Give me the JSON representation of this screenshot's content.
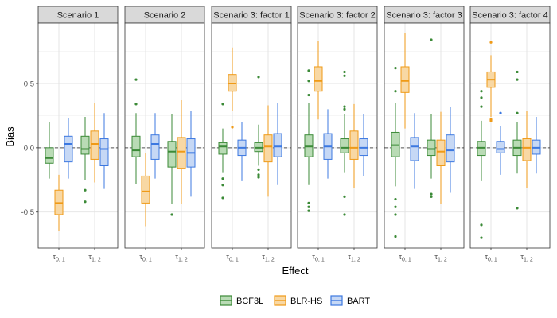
{
  "chart_data": {
    "type": "boxplot",
    "xlabel": "Effect",
    "ylabel": "Bias",
    "ylim": [
      -0.78,
      0.97
    ],
    "yticks": [
      -0.5,
      0.0,
      0.5
    ],
    "ytick_labels": [
      "-0.5",
      "0.0",
      "0.5"
    ],
    "reference_line": 0,
    "legend_position": "bottom",
    "series": [
      {
        "name": "BCF3L",
        "fill": "#b9dbb5",
        "stroke": "#3b8a37"
      },
      {
        "name": "BLR-HS",
        "fill": "#f8d8a4",
        "stroke": "#ef9a17"
      },
      {
        "name": "BART",
        "fill": "#c6d8f5",
        "stroke": "#3c78e0"
      }
    ],
    "categories": [
      {
        "sym": "τ",
        "sub": "0, 1"
      },
      {
        "sym": "τ",
        "sub": "1, 2"
      }
    ],
    "panels": [
      {
        "title": "Scenario 1",
        "groups": [
          [
            {
              "q1": -0.12,
              "med": -0.08,
              "q3": 0.0,
              "lo": -0.24,
              "hi": 0.2,
              "out": []
            },
            {
              "q1": -0.52,
              "med": -0.43,
              "q3": -0.33,
              "lo": -0.65,
              "hi": -0.21,
              "out": []
            },
            {
              "q1": -0.11,
              "med": 0.03,
              "q3": 0.09,
              "lo": -0.24,
              "hi": 0.23,
              "out": []
            }
          ],
          [
            {
              "q1": -0.05,
              "med": -0.01,
              "q3": 0.09,
              "lo": -0.25,
              "hi": 0.24,
              "out": [
                -0.33,
                -0.42
              ]
            },
            {
              "q1": -0.09,
              "med": 0.03,
              "q3": 0.13,
              "lo": -0.27,
              "hi": 0.35,
              "out": []
            },
            {
              "q1": -0.14,
              "med": -0.01,
              "q3": 0.07,
              "lo": -0.32,
              "hi": 0.27,
              "out": []
            }
          ]
        ]
      },
      {
        "title": "Scenario 2",
        "groups": [
          [
            {
              "q1": -0.07,
              "med": -0.02,
              "q3": 0.09,
              "lo": -0.28,
              "hi": 0.27,
              "out": [
                0.53,
                0.34
              ]
            },
            {
              "q1": -0.43,
              "med": -0.34,
              "q3": -0.22,
              "lo": -0.61,
              "hi": -0.04,
              "out": []
            },
            {
              "q1": -0.09,
              "med": 0.03,
              "q3": 0.1,
              "lo": -0.24,
              "hi": 0.27,
              "out": []
            }
          ],
          [
            {
              "q1": -0.15,
              "med": -0.03,
              "q3": 0.05,
              "lo": -0.44,
              "hi": 0.26,
              "out": [
                -0.52
              ]
            },
            {
              "q1": -0.16,
              "med": -0.03,
              "q3": 0.08,
              "lo": -0.44,
              "hi": 0.37,
              "out": []
            },
            {
              "q1": -0.15,
              "med": -0.04,
              "q3": 0.07,
              "lo": -0.38,
              "hi": 0.29,
              "out": []
            }
          ]
        ]
      },
      {
        "title": "Scenario 3: factor 1",
        "groups": [
          [
            {
              "q1": -0.05,
              "med": 0.01,
              "q3": 0.04,
              "lo": -0.19,
              "hi": 0.15,
              "out": [
                0.34,
                -0.24,
                -0.29,
                -0.39
              ]
            },
            {
              "q1": 0.44,
              "med": 0.5,
              "q3": 0.57,
              "lo": 0.29,
              "hi": 0.78,
              "out": [
                0.16
              ]
            },
            {
              "q1": -0.06,
              "med": 0.0,
              "q3": 0.06,
              "lo": -0.26,
              "hi": 0.2,
              "out": []
            }
          ],
          [
            {
              "q1": -0.03,
              "med": 0.0,
              "q3": 0.04,
              "lo": -0.14,
              "hi": 0.18,
              "out": [
                0.55,
                -0.17,
                -0.21,
                -0.23
              ]
            },
            {
              "q1": -0.11,
              "med": 0.01,
              "q3": 0.1,
              "lo": -0.38,
              "hi": 0.33,
              "out": []
            },
            {
              "q1": -0.07,
              "med": 0.01,
              "q3": 0.11,
              "lo": -0.29,
              "hi": 0.35,
              "out": []
            }
          ]
        ]
      },
      {
        "title": "Scenario 3: factor 2",
        "groups": [
          [
            {
              "q1": -0.07,
              "med": 0.01,
              "q3": 0.1,
              "lo": -0.29,
              "hi": 0.35,
              "out": [
                0.6,
                0.52,
                0.41,
                -0.43,
                -0.46,
                -0.49
              ]
            },
            {
              "q1": 0.44,
              "med": 0.52,
              "q3": 0.63,
              "lo": 0.22,
              "hi": 0.83,
              "out": []
            },
            {
              "q1": -0.09,
              "med": 0.01,
              "q3": 0.11,
              "lo": -0.24,
              "hi": 0.3,
              "out": []
            }
          ],
          [
            {
              "q1": -0.04,
              "med": 0.0,
              "q3": 0.07,
              "lo": -0.19,
              "hi": 0.26,
              "out": [
                0.59,
                0.56,
                0.32,
                0.3,
                -0.38,
                -0.52
              ]
            },
            {
              "q1": -0.09,
              "med": 0.0,
              "q3": 0.13,
              "lo": -0.31,
              "hi": 0.34,
              "out": []
            },
            {
              "q1": -0.06,
              "med": 0.0,
              "q3": 0.07,
              "lo": -0.22,
              "hi": 0.26,
              "out": []
            }
          ]
        ]
      },
      {
        "title": "Scenario 3: factor 3",
        "groups": [
          [
            {
              "q1": -0.07,
              "med": 0.02,
              "q3": 0.12,
              "lo": -0.3,
              "hi": 0.35,
              "out": [
                0.62,
                0.44,
                -0.4,
                -0.46,
                -0.52,
                -0.69
              ]
            },
            {
              "q1": 0.43,
              "med": 0.52,
              "q3": 0.63,
              "lo": 0.15,
              "hi": 0.89,
              "out": []
            },
            {
              "q1": -0.1,
              "med": 0.01,
              "q3": 0.08,
              "lo": -0.32,
              "hi": 0.27,
              "out": []
            }
          ],
          [
            {
              "q1": -0.06,
              "med": -0.01,
              "q3": 0.06,
              "lo": -0.24,
              "hi": 0.26,
              "out": [
                0.84,
                -0.36,
                -0.38
              ]
            },
            {
              "q1": -0.14,
              "med": -0.03,
              "q3": 0.06,
              "lo": -0.44,
              "hi": 0.28,
              "out": []
            },
            {
              "q1": -0.11,
              "med": -0.02,
              "q3": 0.1,
              "lo": -0.35,
              "hi": 0.32,
              "out": []
            }
          ]
        ]
      },
      {
        "title": "Scenario 3: factor 4",
        "groups": [
          [
            {
              "q1": -0.06,
              "med": 0.0,
              "q3": 0.05,
              "lo": -0.26,
              "hi": 0.21,
              "out": [
                0.44,
                0.39,
                0.32,
                -0.6,
                -0.7
              ]
            },
            {
              "q1": 0.47,
              "med": 0.53,
              "q3": 0.59,
              "lo": 0.24,
              "hi": 0.72,
              "out": [
                0.82,
                0.22,
                0.21
              ]
            },
            {
              "q1": -0.04,
              "med": -0.01,
              "q3": 0.05,
              "lo": -0.21,
              "hi": 0.17,
              "out": [
                0.27
              ]
            }
          ],
          [
            {
              "q1": -0.06,
              "med": 0.0,
              "q3": 0.06,
              "lo": -0.2,
              "hi": 0.2,
              "out": [
                0.59,
                0.53,
                0.27,
                -0.47
              ]
            },
            {
              "q1": -0.1,
              "med": 0.0,
              "q3": 0.07,
              "lo": -0.31,
              "hi": 0.29,
              "out": []
            },
            {
              "q1": -0.05,
              "med": 0.0,
              "q3": 0.06,
              "lo": -0.2,
              "hi": 0.24,
              "out": []
            }
          ]
        ]
      }
    ]
  }
}
